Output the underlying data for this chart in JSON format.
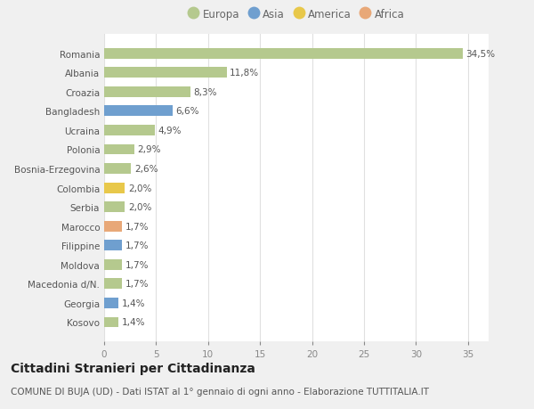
{
  "countries": [
    "Romania",
    "Albania",
    "Croazia",
    "Bangladesh",
    "Ucraina",
    "Polonia",
    "Bosnia-Erzegovina",
    "Colombia",
    "Serbia",
    "Marocco",
    "Filippine",
    "Moldova",
    "Macedonia d/N.",
    "Georgia",
    "Kosovo"
  ],
  "values": [
    34.5,
    11.8,
    8.3,
    6.6,
    4.9,
    2.9,
    2.6,
    2.0,
    2.0,
    1.7,
    1.7,
    1.7,
    1.7,
    1.4,
    1.4
  ],
  "labels": [
    "34,5%",
    "11,8%",
    "8,3%",
    "6,6%",
    "4,9%",
    "2,9%",
    "2,6%",
    "2,0%",
    "2,0%",
    "1,7%",
    "1,7%",
    "1,7%",
    "1,7%",
    "1,4%",
    "1,4%"
  ],
  "continents": [
    "Europa",
    "Europa",
    "Europa",
    "Asia",
    "Europa",
    "Europa",
    "Europa",
    "America",
    "Europa",
    "Africa",
    "Asia",
    "Europa",
    "Europa",
    "Asia",
    "Europa"
  ],
  "continent_colors": {
    "Europa": "#b5c98e",
    "Asia": "#6f9fcf",
    "America": "#e8c84a",
    "Africa": "#e8a878"
  },
  "legend_order": [
    "Europa",
    "Asia",
    "America",
    "Africa"
  ],
  "xlim": [
    0,
    37
  ],
  "xticks": [
    0,
    5,
    10,
    15,
    20,
    25,
    30,
    35
  ],
  "background_color": "#f0f0f0",
  "plot_bg_color": "#ffffff",
  "title": "Cittadini Stranieri per Cittadinanza",
  "subtitle": "COMUNE DI BUJA (UD) - Dati ISTAT al 1° gennaio di ogni anno - Elaborazione TUTTITALIA.IT",
  "title_fontsize": 10,
  "subtitle_fontsize": 7.5,
  "label_fontsize": 7.5,
  "tick_fontsize": 7.5,
  "legend_fontsize": 8.5,
  "bar_height": 0.55,
  "grid_color": "#e0e0e0",
  "label_color": "#555555",
  "tick_color": "#888888",
  "ytick_color": "#555555"
}
